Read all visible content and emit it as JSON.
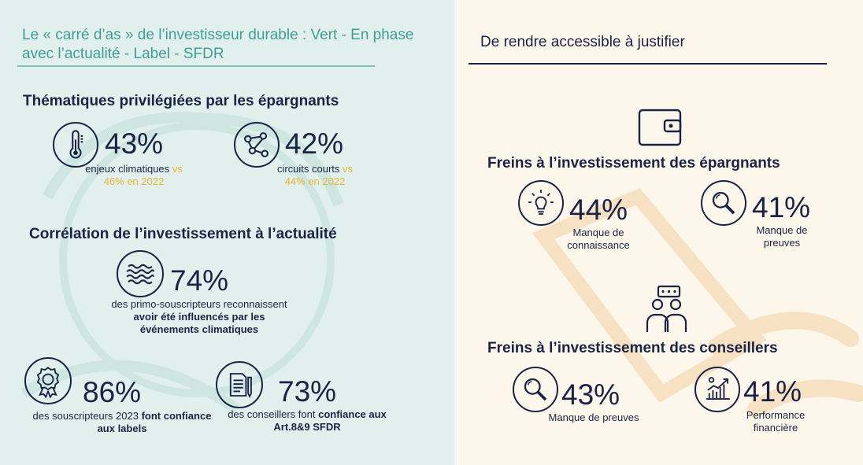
{
  "left": {
    "title": "Le « carré d’as » de l’investisseur durable : Vert - En phase avec l’actualité - Label - SFDR",
    "section1": {
      "heading": "Thématiques privilégiées par les épargnants",
      "items": [
        {
          "percent": "43%",
          "caption": "enjeux climatiques",
          "compare_vs": "vs",
          "compare_value": "46% en 2022",
          "icon": "thermometer-icon"
        },
        {
          "percent": "42%",
          "caption": "circuits courts",
          "compare_vs": "vs",
          "compare_value": "44% en 2022",
          "icon": "network-icon"
        }
      ]
    },
    "section2": {
      "heading": "Corrélation de l’investissement à l’actualité",
      "item": {
        "percent": "74%",
        "caption_line1": "des primo-souscripteurs reconnaissent",
        "caption_bold": "avoir été influencés par les événements climatiques",
        "icon": "waves-icon"
      }
    },
    "section3": [
      {
        "percent": "86%",
        "caption_plain": "des souscripteurs 2023",
        "caption_bold": "font confiance aux labels",
        "icon": "award-badge-icon"
      },
      {
        "percent": "73%",
        "caption_plain": "des conseillers font",
        "caption_bold": "confiance aux Art.8&9 SFDR",
        "icon": "document-pen-icon"
      }
    ]
  },
  "right": {
    "title": "De rendre accessible à justifier",
    "section1": {
      "heading": "Freins à l’investissement des épargnants",
      "items": [
        {
          "percent": "44%",
          "caption": "Manque de connaissance",
          "icon": "lightbulb-icon"
        },
        {
          "percent": "41%",
          "caption": "Manque de preuves",
          "icon": "magnifier-icon"
        }
      ]
    },
    "section2": {
      "heading": "Freins à l’investissement des conseillers",
      "items": [
        {
          "percent": "43%",
          "caption": "Manque de preuves",
          "icon": "magnifier-icon"
        },
        {
          "percent": "41%",
          "caption": "Performance financière",
          "icon": "growth-chart-icon"
        }
      ]
    }
  },
  "colors": {
    "navy": "#1a2346",
    "teal": "#3f9e93",
    "mint_bg": "#e1f0ec",
    "cream_bg": "#fdf6ea",
    "highlight": "#e8b533"
  }
}
